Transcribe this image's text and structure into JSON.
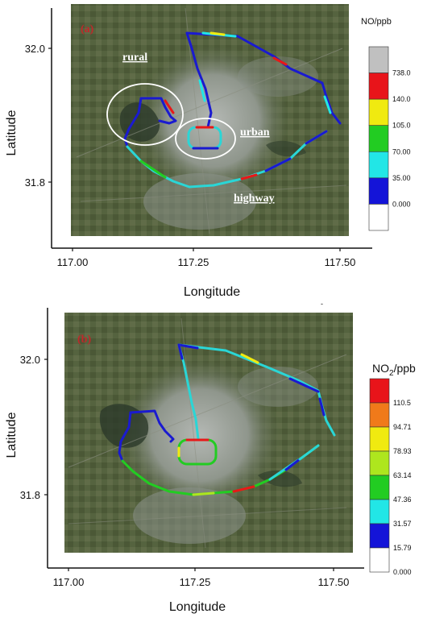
{
  "panel_a": {
    "label": "(a)",
    "colorbar": {
      "title": "NO/ppb",
      "ticks": [
        "738.0",
        "140.0",
        "105.0",
        "70.00",
        "35.00",
        "0.000"
      ],
      "colors": [
        "#c0c0c0",
        "#e8141a",
        "#f0ea10",
        "#22cc22",
        "#22e6e6",
        "#1414d8",
        "#ffffff"
      ]
    },
    "yticks": [
      "32.0",
      "31.8"
    ],
    "xticks": [
      "117.00",
      "117.25",
      "117.50"
    ],
    "ylabel": "Latitude",
    "xlabel": "Longitude",
    "annotations": {
      "rural": "rural",
      "urban": "urban",
      "highway": "highway"
    }
  },
  "panel_b": {
    "label": "(b)",
    "colorbar": {
      "title_main": "NO",
      "title_sub": "2",
      "title_rest": "/ppb",
      "ticks": [
        "110.5",
        "94.71",
        "78.93",
        "63.14",
        "47.36",
        "31.57",
        "15.79",
        "0.000"
      ],
      "colors": [
        "#e8141a",
        "#f07a1a",
        "#f0ea10",
        "#aee61e",
        "#22cc22",
        "#22e6e6",
        "#1414d8",
        "#ffffff"
      ]
    },
    "yticks": [
      "32.0",
      "31.8"
    ],
    "xticks": [
      "117.00",
      "117.25",
      "117.50"
    ],
    "ylabel": "Latitude",
    "xlabel": "Longitude"
  },
  "colors": {
    "route_low": "#1a1ad0",
    "route_mid": "#2ad6d6",
    "route_high": "#e81818",
    "map_dark": "#4d5a3c",
    "map_urban": "#9aa09a"
  }
}
